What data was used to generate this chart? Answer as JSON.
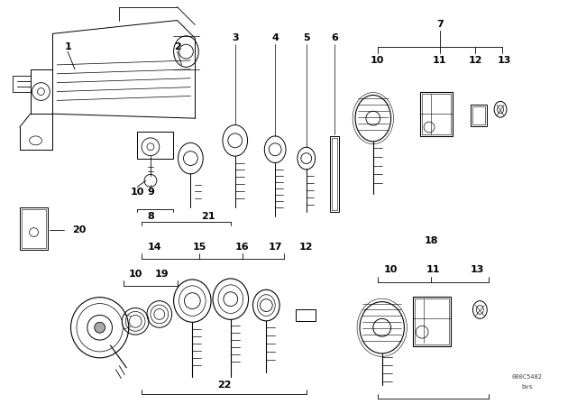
{
  "background_color": "#ffffff",
  "line_color": "#000000",
  "text_color": "#000000",
  "watermark_code": "000C5482",
  "watermark_sub": "bvs",
  "figsize": [
    6.4,
    4.48
  ],
  "dpi": 100
}
